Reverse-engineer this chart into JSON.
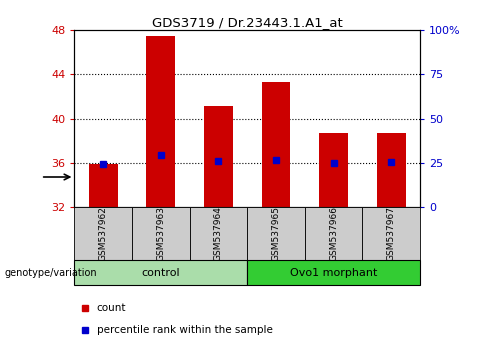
{
  "title": "GDS3719 / Dr.23443.1.A1_at",
  "samples": [
    "GSM537962",
    "GSM537963",
    "GSM537964",
    "GSM537965",
    "GSM537966",
    "GSM537967"
  ],
  "bar_bottoms": [
    32,
    32,
    32,
    32,
    32,
    32
  ],
  "bar_tops": [
    35.9,
    47.5,
    41.1,
    43.3,
    38.7,
    38.7
  ],
  "percentile_values": [
    35.9,
    36.7,
    36.2,
    36.3,
    36.0,
    36.1
  ],
  "ylim": [
    32,
    48
  ],
  "yticks": [
    32,
    36,
    40,
    44,
    48
  ],
  "right_ylim": [
    0,
    100
  ],
  "right_yticks": [
    0,
    25,
    50,
    75,
    100
  ],
  "right_yticklabels": [
    "0",
    "25",
    "50",
    "75",
    "100%"
  ],
  "bar_color": "#cc0000",
  "percentile_color": "#0000cc",
  "left_tick_color": "#cc0000",
  "right_tick_color": "#0000cc",
  "groups": [
    {
      "label": "control",
      "start": 0,
      "end": 3,
      "color": "#aaddaa"
    },
    {
      "label": "Ovo1 morphant",
      "start": 3,
      "end": 6,
      "color": "#33cc33"
    }
  ],
  "group_label": "genotype/variation",
  "legend_items": [
    {
      "label": "count",
      "color": "#cc0000"
    },
    {
      "label": "percentile rank within the sample",
      "color": "#0000cc"
    }
  ],
  "bar_width": 0.5,
  "sample_bg_color": "#cccccc"
}
